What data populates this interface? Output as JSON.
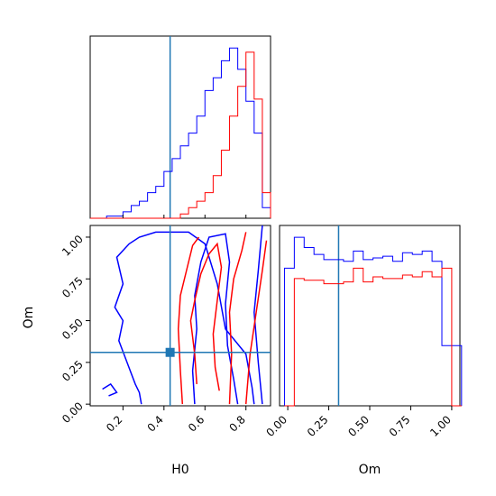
{
  "chart_data": {
    "type": "corner",
    "truth": {
      "H0": 0.43,
      "Om": 0.31
    },
    "colors": {
      "blue": "#0000ff",
      "red": "#ff0000",
      "truth": "#1f77b4"
    },
    "panels": {
      "h0_hist": {
        "type": "histogram",
        "xlim": [
          0.04,
          0.92
        ],
        "xticks": [
          0.2,
          0.4,
          0.6,
          0.8
        ],
        "bins": [
          0.04,
          0.08,
          0.12,
          0.16,
          0.2,
          0.24,
          0.28,
          0.32,
          0.36,
          0.4,
          0.44,
          0.48,
          0.52,
          0.56,
          0.6,
          0.64,
          0.68,
          0.72,
          0.76,
          0.8,
          0.84,
          0.88,
          0.92
        ],
        "series": [
          {
            "color": "blue",
            "values": [
              0,
              0,
              1,
              1,
              3,
              6,
              8,
              12,
              15,
              22,
              28,
              34,
              40,
              48,
              60,
              66,
              74,
              80,
              70,
              55,
              40,
              5
            ]
          },
          {
            "color": "red",
            "values": [
              0,
              0,
              0,
              0,
              0,
              0,
              0,
              0,
              0,
              0,
              0,
              2,
              5,
              8,
              12,
              20,
              32,
              48,
              62,
              78,
              56,
              12
            ]
          }
        ]
      },
      "om_hist": {
        "type": "histogram",
        "xlim": [
          -0.05,
          1.05
        ],
        "xticks": [
          "0.00",
          "0.25",
          "0.50",
          "0.75",
          "1.00"
        ],
        "bins": [
          -0.02,
          0.04,
          0.1,
          0.16,
          0.22,
          0.28,
          0.34,
          0.4,
          0.46,
          0.52,
          0.58,
          0.64,
          0.7,
          0.76,
          0.82,
          0.88,
          0.94,
          1.0,
          1.06
        ],
        "series": [
          {
            "color": "blue",
            "values": [
              80,
              98,
              92,
              88,
              85,
              85,
              84,
              90,
              85,
              86,
              87,
              84,
              89,
              88,
              90,
              84,
              35,
              35
            ]
          },
          {
            "color": "red",
            "values": [
              0,
              74,
              73,
              73,
              71,
              71,
              72,
              80,
              72,
              75,
              74,
              74,
              76,
              75,
              78,
              75,
              80,
              0
            ]
          }
        ]
      },
      "joint": {
        "type": "contour",
        "xlabel": "H0",
        "ylabel": "Om",
        "xlim": [
          0.04,
          0.92
        ],
        "ylim": [
          -0.01,
          1.07
        ],
        "xticks": [
          0.2,
          0.4,
          0.6,
          0.8
        ],
        "yticks": [
          "0.00",
          "0.25",
          "0.50",
          "0.75",
          "1.00"
        ],
        "contours": [
          {
            "color": "blue",
            "points": [
              [
                0.29,
                0.0
              ],
              [
                0.28,
                0.07
              ],
              [
                0.26,
                0.12
              ],
              [
                0.22,
                0.25
              ],
              [
                0.18,
                0.38
              ],
              [
                0.2,
                0.5
              ],
              [
                0.16,
                0.58
              ],
              [
                0.2,
                0.72
              ],
              [
                0.17,
                0.88
              ],
              [
                0.23,
                0.96
              ],
              [
                0.28,
                1.0
              ],
              [
                0.36,
                1.03
              ],
              [
                0.52,
                1.03
              ],
              [
                0.6,
                0.96
              ],
              [
                0.66,
                0.72
              ],
              [
                0.7,
                0.45
              ],
              [
                0.8,
                0.3
              ],
              [
                0.83,
                0.1
              ],
              [
                0.84,
                0.0
              ]
            ]
          },
          {
            "color": "blue",
            "points": [
              [
                0.55,
                0.0
              ],
              [
                0.54,
                0.2
              ],
              [
                0.56,
                0.45
              ],
              [
                0.55,
                0.65
              ],
              [
                0.58,
                0.85
              ],
              [
                0.62,
                1.0
              ],
              [
                0.7,
                1.02
              ],
              [
                0.72,
                0.85
              ],
              [
                0.7,
                0.6
              ],
              [
                0.71,
                0.35
              ],
              [
                0.74,
                0.15
              ],
              [
                0.76,
                0.0
              ]
            ]
          },
          {
            "color": "blue",
            "points": [
              [
                0.88,
                0.0
              ],
              [
                0.86,
                0.25
              ],
              [
                0.84,
                0.55
              ],
              [
                0.86,
                0.8
              ],
              [
                0.88,
                1.07
              ]
            ]
          },
          {
            "color": "blue",
            "points": [
              [
                0.1,
                0.09
              ],
              [
                0.14,
                0.12
              ],
              [
                0.17,
                0.07
              ],
              [
                0.13,
                0.05
              ]
            ]
          },
          {
            "color": "red",
            "points": [
              [
                0.49,
                0.0
              ],
              [
                0.48,
                0.2
              ],
              [
                0.47,
                0.45
              ],
              [
                0.48,
                0.65
              ],
              [
                0.51,
                0.8
              ],
              [
                0.54,
                0.95
              ],
              [
                0.57,
                1.0
              ]
            ]
          },
          {
            "color": "red",
            "points": [
              [
                0.56,
                0.12
              ],
              [
                0.55,
                0.3
              ],
              [
                0.53,
                0.5
              ],
              [
                0.55,
                0.62
              ],
              [
                0.58,
                0.78
              ],
              [
                0.62,
                0.9
              ],
              [
                0.66,
                0.96
              ],
              [
                0.68,
                0.82
              ],
              [
                0.66,
                0.62
              ],
              [
                0.64,
                0.42
              ],
              [
                0.65,
                0.22
              ],
              [
                0.67,
                0.08
              ]
            ]
          },
          {
            "color": "red",
            "points": [
              [
                0.72,
                0.0
              ],
              [
                0.73,
                0.3
              ],
              [
                0.72,
                0.55
              ],
              [
                0.74,
                0.75
              ],
              [
                0.78,
                0.92
              ],
              [
                0.8,
                1.03
              ]
            ]
          },
          {
            "color": "red",
            "points": [
              [
                0.8,
                0.0
              ],
              [
                0.82,
                0.3
              ],
              [
                0.85,
                0.55
              ],
              [
                0.88,
                0.8
              ],
              [
                0.9,
                0.98
              ]
            ]
          }
        ]
      }
    }
  }
}
